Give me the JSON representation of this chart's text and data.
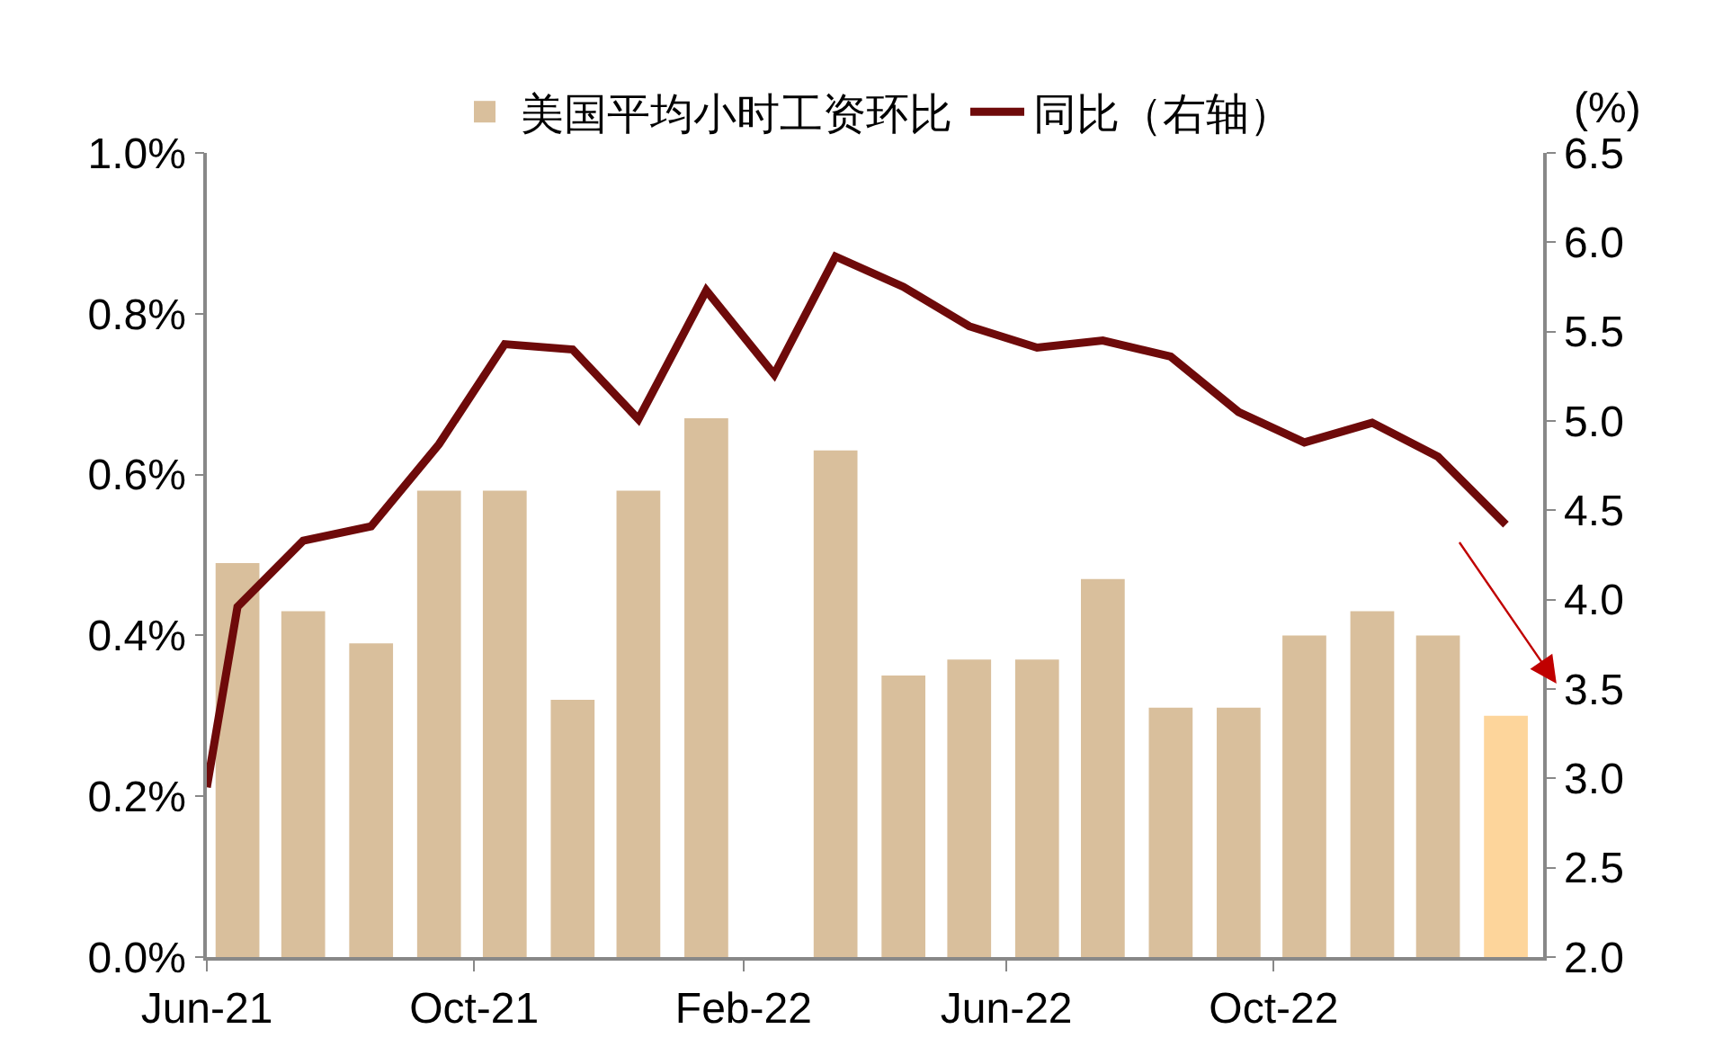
{
  "chart_data": {
    "type": "bar",
    "x": [
      "2021-06-15",
      "2021-07-15",
      "2021-08-15",
      "2021-09-15",
      "2021-10-15",
      "2021-11-15",
      "2021-12-15",
      "2022-01-15",
      "2022-02-15",
      "2022-03-15",
      "2022-04-15",
      "2022-05-15",
      "2022-06-15",
      "2022-07-15",
      "2022-08-15",
      "2022-09-15",
      "2022-10-15",
      "2022-11-15",
      "2022-12-15",
      "2023-01-15"
    ],
    "series": [
      {
        "name": "美国平均小时工资环比",
        "color": "#d9bf9c",
        "colors": [
          "#d9bf9c",
          "#d9bf9c",
          "#d9bf9c",
          "#d9bf9c",
          "#d9bf9c",
          "#d9bf9c",
          "#d9bf9c",
          "#d9bf9c",
          "#d9bf9c",
          "#d9bf9c",
          "#d9bf9c",
          "#d9bf9c",
          "#d9bf9c",
          "#d9bf9c",
          "#d9bf9c",
          "#d9bf9c",
          "#d9bf9c",
          "#d9bf9c",
          "#d9bf9c",
          "#fdd59b"
        ],
        "values": [
          0.49,
          0.43,
          0.39,
          0.58,
          0.58,
          0.32,
          0.58,
          0.67,
          null,
          0.63,
          0.35,
          0.37,
          0.37,
          0.47,
          0.31,
          0.31,
          0.4,
          0.43,
          0.4,
          0.3
        ]
      },
      {
        "name": "同比（右轴）",
        "type": "line",
        "axis": "y2",
        "color": "#6e0a0a",
        "x": [
          "2021-06-01",
          "2021-06-15",
          "2021-07-15",
          "2021-08-15",
          "2021-09-15",
          "2021-10-15",
          "2021-11-15",
          "2021-12-15",
          "2022-01-15",
          "2022-02-15",
          "2022-03-15",
          "2022-04-15",
          "2022-05-15",
          "2022-06-15",
          "2022-07-15",
          "2022-08-15",
          "2022-09-15",
          "2022-10-15",
          "2022-11-15",
          "2022-12-15",
          "2023-01-15"
        ],
        "values": [
          2.95,
          3.96,
          4.33,
          4.41,
          4.87,
          5.43,
          5.4,
          5.01,
          5.73,
          5.26,
          5.92,
          5.75,
          5.53,
          5.41,
          5.45,
          5.36,
          5.05,
          4.88,
          4.99,
          4.8,
          4.42
        ]
      }
    ],
    "xlim": [
      "2021-06-01",
      "2023-02-01"
    ],
    "xticks": [
      {
        "value": "2021-06-01",
        "label": "Jun-21"
      },
      {
        "value": "2021-10-01",
        "label": "Oct-21"
      },
      {
        "value": "2022-02-01",
        "label": "Feb-22"
      },
      {
        "value": "2022-06-01",
        "label": "Jun-22"
      },
      {
        "value": "2022-10-01",
        "label": "Oct-22"
      }
    ],
    "ylim": [
      0,
      1.0
    ],
    "yticks": [
      {
        "value": 0,
        "label": "0.0%"
      },
      {
        "value": 0.2,
        "label": "0.2%"
      },
      {
        "value": 0.4,
        "label": "0.4%"
      },
      {
        "value": 0.6,
        "label": "0.6%"
      },
      {
        "value": 0.8,
        "label": "0.8%"
      },
      {
        "value": 1.0,
        "label": "1.0%"
      }
    ],
    "y2lim": [
      2.0,
      6.5
    ],
    "y2ticks": [
      {
        "value": 2,
        "label": "2.0"
      },
      {
        "value": 2.5,
        "label": "2.5"
      },
      {
        "value": 3,
        "label": "3.0"
      },
      {
        "value": 3.5,
        "label": "3.5"
      },
      {
        "value": 4,
        "label": "4.0"
      },
      {
        "value": 4.5,
        "label": "4.5"
      },
      {
        "value": 5,
        "label": "5.0"
      },
      {
        "value": 5.5,
        "label": "5.5"
      },
      {
        "value": 6,
        "label": "6.0"
      },
      {
        "value": 6.5,
        "label": "6.5"
      }
    ],
    "y2label": "(%)",
    "legend": "top",
    "marker": "none",
    "line_style": "solid"
  }
}
